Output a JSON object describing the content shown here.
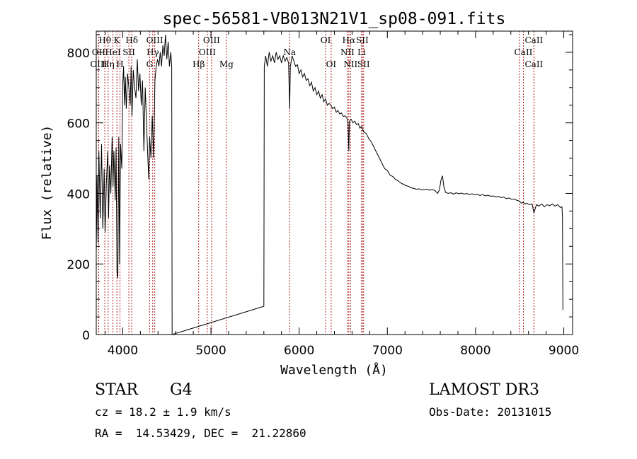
{
  "chart_data": {
    "type": "line",
    "title": "spec-56581-VB013N21V1_sp08-091.fits",
    "xlabel": "Wavelength (Å)",
    "ylabel": "Flux (relative)",
    "xlim": [
      3700,
      9100
    ],
    "ylim": [
      0,
      860
    ],
    "x_ticks": [
      4000,
      5000,
      6000,
      7000,
      8000,
      9000
    ],
    "y_ticks": [
      0,
      200,
      400,
      600,
      800
    ],
    "grid": false,
    "series": [
      {
        "name": "flux",
        "points": [
          [
            3700,
            230
          ],
          [
            3710,
            450
          ],
          [
            3720,
            260
          ],
          [
            3730,
            520
          ],
          [
            3745,
            330
          ],
          [
            3760,
            540
          ],
          [
            3775,
            300
          ],
          [
            3790,
            470
          ],
          [
            3800,
            290
          ],
          [
            3815,
            430
          ],
          [
            3830,
            520
          ],
          [
            3840,
            330
          ],
          [
            3850,
            480
          ],
          [
            3865,
            400
          ],
          [
            3880,
            560
          ],
          [
            3890,
            420
          ],
          [
            3900,
            520
          ],
          [
            3915,
            380
          ],
          [
            3925,
            530
          ],
          [
            3935,
            180
          ],
          [
            3945,
            160
          ],
          [
            3955,
            560
          ],
          [
            3965,
            200
          ],
          [
            3975,
            540
          ],
          [
            3990,
            470
          ],
          [
            4000,
            710
          ],
          [
            4010,
            760
          ],
          [
            4020,
            650
          ],
          [
            4030,
            730
          ],
          [
            4040,
            640
          ],
          [
            4055,
            740
          ],
          [
            4070,
            700
          ],
          [
            4085,
            650
          ],
          [
            4095,
            760
          ],
          [
            4105,
            620
          ],
          [
            4120,
            750
          ],
          [
            4135,
            700
          ],
          [
            4150,
            670
          ],
          [
            4165,
            780
          ],
          [
            4180,
            690
          ],
          [
            4195,
            740
          ],
          [
            4210,
            650
          ],
          [
            4225,
            720
          ],
          [
            4240,
            520
          ],
          [
            4255,
            700
          ],
          [
            4270,
            600
          ],
          [
            4285,
            500
          ],
          [
            4295,
            440
          ],
          [
            4305,
            560
          ],
          [
            4320,
            500
          ],
          [
            4335,
            620
          ],
          [
            4350,
            500
          ],
          [
            4365,
            720
          ],
          [
            4380,
            760
          ],
          [
            4395,
            780
          ],
          [
            4410,
            760
          ],
          [
            4425,
            800
          ],
          [
            4440,
            760
          ],
          [
            4455,
            820
          ],
          [
            4470,
            790
          ],
          [
            4485,
            850
          ],
          [
            4500,
            780
          ],
          [
            4515,
            830
          ],
          [
            4530,
            760
          ],
          [
            4545,
            800
          ],
          [
            4555,
            760
          ],
          [
            4560,
            0
          ],
          [
            5600,
            80
          ],
          [
            5605,
            760
          ],
          [
            5620,
            790
          ],
          [
            5640,
            760
          ],
          [
            5660,
            800
          ],
          [
            5680,
            775
          ],
          [
            5700,
            790
          ],
          [
            5720,
            770
          ],
          [
            5740,
            800
          ],
          [
            5760,
            780
          ],
          [
            5780,
            790
          ],
          [
            5800,
            770
          ],
          [
            5820,
            790
          ],
          [
            5840,
            775
          ],
          [
            5860,
            785
          ],
          [
            5880,
            770
          ],
          [
            5893,
            640
          ],
          [
            5900,
            760
          ],
          [
            5920,
            790
          ],
          [
            5940,
            775
          ],
          [
            5960,
            760
          ],
          [
            5980,
            765
          ],
          [
            6000,
            740
          ],
          [
            6020,
            750
          ],
          [
            6040,
            730
          ],
          [
            6060,
            740
          ],
          [
            6080,
            720
          ],
          [
            6100,
            725
          ],
          [
            6120,
            705
          ],
          [
            6140,
            715
          ],
          [
            6160,
            690
          ],
          [
            6180,
            700
          ],
          [
            6200,
            680
          ],
          [
            6220,
            690
          ],
          [
            6240,
            670
          ],
          [
            6260,
            680
          ],
          [
            6280,
            660
          ],
          [
            6300,
            668
          ],
          [
            6320,
            650
          ],
          [
            6340,
            655
          ],
          [
            6360,
            650
          ],
          [
            6380,
            640
          ],
          [
            6400,
            645
          ],
          [
            6420,
            630
          ],
          [
            6440,
            635
          ],
          [
            6460,
            625
          ],
          [
            6480,
            628
          ],
          [
            6500,
            618
          ],
          [
            6520,
            620
          ],
          [
            6540,
            615
          ],
          [
            6555,
            600
          ],
          [
            6563,
            520
          ],
          [
            6570,
            605
          ],
          [
            6590,
            610
          ],
          [
            6610,
            600
          ],
          [
            6630,
            605
          ],
          [
            6650,
            595
          ],
          [
            6670,
            598
          ],
          [
            6690,
            585
          ],
          [
            6710,
            590
          ],
          [
            6730,
            575
          ],
          [
            6760,
            570
          ],
          [
            6790,
            555
          ],
          [
            6820,
            545
          ],
          [
            6850,
            530
          ],
          [
            6880,
            515
          ],
          [
            6910,
            500
          ],
          [
            6940,
            485
          ],
          [
            6970,
            470
          ],
          [
            7000,
            465
          ],
          [
            7030,
            452
          ],
          [
            7060,
            448
          ],
          [
            7090,
            440
          ],
          [
            7120,
            436
          ],
          [
            7150,
            430
          ],
          [
            7180,
            426
          ],
          [
            7210,
            422
          ],
          [
            7240,
            420
          ],
          [
            7270,
            416
          ],
          [
            7300,
            414
          ],
          [
            7330,
            412
          ],
          [
            7360,
            413
          ],
          [
            7390,
            410
          ],
          [
            7420,
            411
          ],
          [
            7450,
            412
          ],
          [
            7480,
            409
          ],
          [
            7510,
            411
          ],
          [
            7540,
            408
          ],
          [
            7570,
            400
          ],
          [
            7590,
            410
          ],
          [
            7610,
            440
          ],
          [
            7625,
            450
          ],
          [
            7640,
            420
          ],
          [
            7660,
            403
          ],
          [
            7690,
            400
          ],
          [
            7720,
            402
          ],
          [
            7750,
            398
          ],
          [
            7780,
            402
          ],
          [
            7810,
            399
          ],
          [
            7840,
            401
          ],
          [
            7870,
            398
          ],
          [
            7900,
            400
          ],
          [
            7930,
            397
          ],
          [
            7960,
            399
          ],
          [
            7990,
            396
          ],
          [
            8020,
            398
          ],
          [
            8050,
            394
          ],
          [
            8080,
            397
          ],
          [
            8110,
            393
          ],
          [
            8140,
            395
          ],
          [
            8170,
            392
          ],
          [
            8200,
            393
          ],
          [
            8230,
            390
          ],
          [
            8260,
            392
          ],
          [
            8290,
            388
          ],
          [
            8320,
            390
          ],
          [
            8350,
            385
          ],
          [
            8380,
            387
          ],
          [
            8410,
            383
          ],
          [
            8440,
            384
          ],
          [
            8470,
            380
          ],
          [
            8500,
            378
          ],
          [
            8520,
            372
          ],
          [
            8540,
            375
          ],
          [
            8560,
            370
          ],
          [
            8580,
            372
          ],
          [
            8610,
            368
          ],
          [
            8640,
            370
          ],
          [
            8662,
            345
          ],
          [
            8690,
            368
          ],
          [
            8720,
            364
          ],
          [
            8750,
            370
          ],
          [
            8780,
            362
          ],
          [
            8810,
            368
          ],
          [
            8840,
            365
          ],
          [
            8870,
            370
          ],
          [
            8900,
            364
          ],
          [
            8930,
            368
          ],
          [
            8960,
            360
          ],
          [
            8980,
            362
          ],
          [
            8985,
            330
          ],
          [
            8990,
            70
          ]
        ]
      }
    ],
    "lines": [
      {
        "label": "Hθ",
        "x": 3797,
        "row": 0
      },
      {
        "label": "OII",
        "x": 3727,
        "row": 1
      },
      {
        "label": "OIII",
        "x": 3727,
        "row": 2
      },
      {
        "label": "Hη",
        "x": 3835,
        "row": 2
      },
      {
        "label": "HeI",
        "x": 3889,
        "row": 1
      },
      {
        "label": "K",
        "x": 3934,
        "row": 0
      },
      {
        "label": "H",
        "x": 3969,
        "row": 2
      },
      {
        "label": "SII",
        "x": 4070,
        "row": 1
      },
      {
        "label": "Hδ",
        "x": 4102,
        "row": 0
      },
      {
        "label": "OIII",
        "x": 4363,
        "row": 0
      },
      {
        "label": "Hγ",
        "x": 4340,
        "row": 1
      },
      {
        "label": "G",
        "x": 4305,
        "row": 2
      },
      {
        "label": "OIII",
        "x": 5007,
        "row": 0
      },
      {
        "label": "OIII",
        "x": 4959,
        "row": 1
      },
      {
        "label": "Hβ",
        "x": 4861,
        "row": 2
      },
      {
        "label": "Mg",
        "x": 5175,
        "row": 2
      },
      {
        "label": "Na",
        "x": 5893,
        "row": 1
      },
      {
        "label": "OI",
        "x": 6300,
        "row": 0
      },
      {
        "label": "OI",
        "x": 6363,
        "row": 2
      },
      {
        "label": "Hα",
        "x": 6563,
        "row": 0
      },
      {
        "label": "SII",
        "x": 6716,
        "row": 0
      },
      {
        "label": "NII",
        "x": 6548,
        "row": 1
      },
      {
        "label": "Li",
        "x": 6708,
        "row": 1
      },
      {
        "label": "NII",
        "x": 6583,
        "row": 2
      },
      {
        "label": "SII",
        "x": 6731,
        "row": 2
      },
      {
        "label": "CaII",
        "x": 8662,
        "row": 0
      },
      {
        "label": "CaII",
        "x": 8542,
        "row": 1
      },
      {
        "label": "CaII",
        "x": 8662,
        "row": 2
      },
      {
        "label": "",
        "x": 8498,
        "row": 3
      }
    ]
  },
  "info": {
    "object_class": "STAR",
    "subclass": "G4",
    "survey": "LAMOST DR3",
    "redshift": "cz = 18.2 ± 1.9 km/s",
    "obs_date": "Obs-Date: 20131015",
    "coords": "RA =  14.53429, DEC =  21.22860"
  },
  "colors": {
    "line_marker": "#b22222",
    "spectrum": "#000000"
  }
}
